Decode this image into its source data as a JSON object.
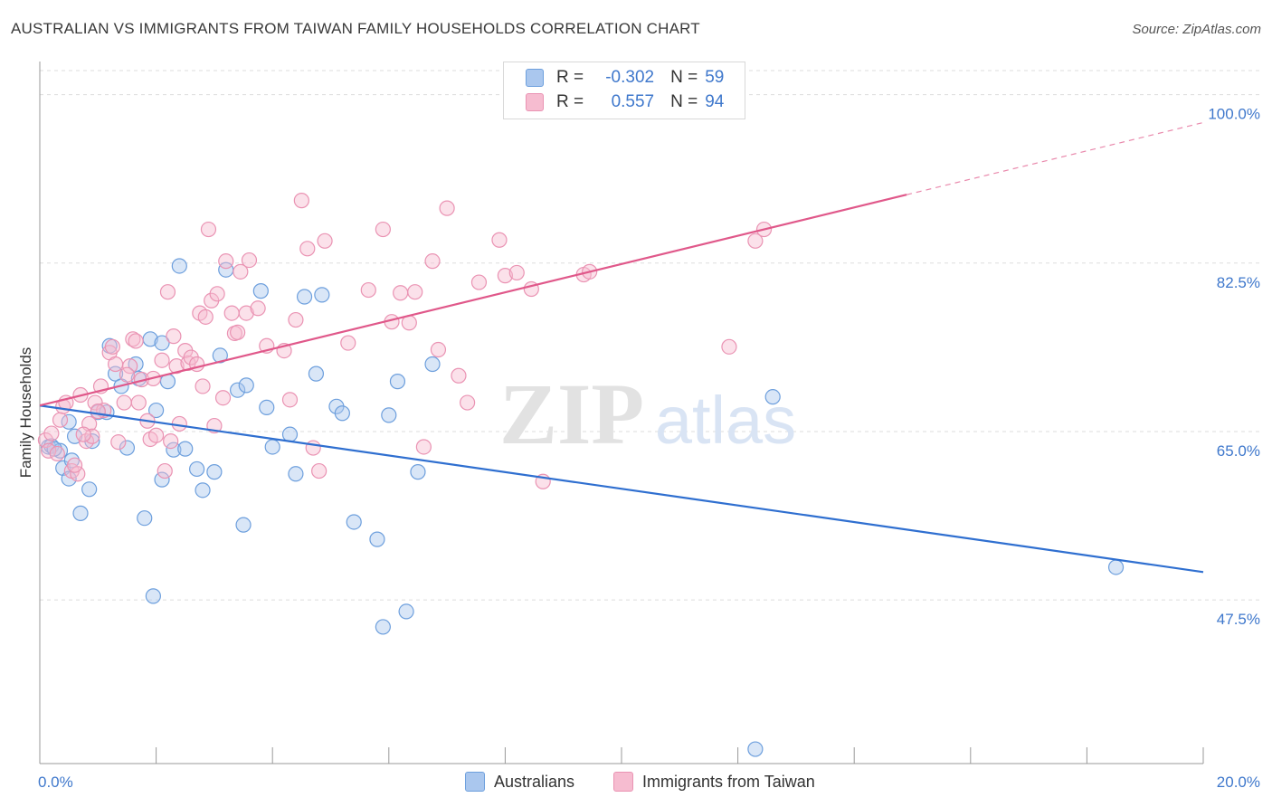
{
  "header": {
    "title": "AUSTRALIAN VS IMMIGRANTS FROM TAIWAN FAMILY HOUSEHOLDS CORRELATION CHART",
    "source": "Source: ZipAtlas.com"
  },
  "watermark": {
    "zip": "ZIP",
    "atlas": "atlas"
  },
  "legend": {
    "rows": [
      {
        "r_label": "R =",
        "r_value": "-0.302",
        "n_label": "N =",
        "n_value": "59"
      },
      {
        "r_label": "R =",
        "r_value": "0.557",
        "n_label": "N =",
        "n_value": "94"
      }
    ]
  },
  "bottom_legend": {
    "series1": "Australians",
    "series2": "Immigrants from Taiwan"
  },
  "colors": {
    "blue_fill": "#aac7ee",
    "blue_stroke": "#6d9fdd",
    "blue_line": "#2f6fd0",
    "pink_fill": "#f6bcd0",
    "pink_stroke": "#ea93b3",
    "pink_line": "#e0588a",
    "tick_label": "#3f78cc",
    "grid": "#dddddd"
  },
  "chart_data": {
    "type": "scatter",
    "title": "AUSTRALIAN VS IMMIGRANTS FROM TAIWAN FAMILY HOUSEHOLDS CORRELATION CHART",
    "xlabel": "",
    "ylabel": "Family Households",
    "xlim": [
      0,
      20
    ],
    "ylim": [
      30.5,
      102.5
    ],
    "x_tick_labels": [
      {
        "value": 0,
        "label": "0.0%"
      },
      {
        "value": 20,
        "label": "20.0%"
      }
    ],
    "y_ticks": [
      {
        "value": 100.0,
        "label": "100.0%"
      },
      {
        "value": 82.5,
        "label": "82.5%"
      },
      {
        "value": 65.0,
        "label": "65.0%"
      },
      {
        "value": 47.5,
        "label": "47.5%"
      }
    ],
    "series": [
      {
        "name": "Australians",
        "R": -0.302,
        "N": 59,
        "trend": {
          "x0": 0,
          "y0": 67.7,
          "x1": 20,
          "y1": 50.4
        },
        "points": [
          [
            0.15,
            63.4
          ],
          [
            0.2,
            63.5
          ],
          [
            0.35,
            63.0
          ],
          [
            0.4,
            61.2
          ],
          [
            0.5,
            60.1
          ],
          [
            0.55,
            62.0
          ],
          [
            0.5,
            66.0
          ],
          [
            0.6,
            64.5
          ],
          [
            0.7,
            56.5
          ],
          [
            0.85,
            59.0
          ],
          [
            0.9,
            64.0
          ],
          [
            1.0,
            67.0
          ],
          [
            1.2,
            73.9
          ],
          [
            1.3,
            71.0
          ],
          [
            1.4,
            69.7
          ],
          [
            1.5,
            63.3
          ],
          [
            1.65,
            72.0
          ],
          [
            1.8,
            56.0
          ],
          [
            1.9,
            74.6
          ],
          [
            2.0,
            67.2
          ],
          [
            2.1,
            60.0
          ],
          [
            2.2,
            70.2
          ],
          [
            2.3,
            63.1
          ],
          [
            2.4,
            82.2
          ],
          [
            2.5,
            63.2
          ],
          [
            2.7,
            61.1
          ],
          [
            2.8,
            58.9
          ],
          [
            3.0,
            60.8
          ],
          [
            3.1,
            72.9
          ],
          [
            3.2,
            81.8
          ],
          [
            3.4,
            69.3
          ],
          [
            3.5,
            55.3
          ],
          [
            3.55,
            69.8
          ],
          [
            3.8,
            79.6
          ],
          [
            3.9,
            67.5
          ],
          [
            4.0,
            63.4
          ],
          [
            4.3,
            64.7
          ],
          [
            4.4,
            60.6
          ],
          [
            4.55,
            79.0
          ],
          [
            4.75,
            71.0
          ],
          [
            4.85,
            79.2
          ],
          [
            5.1,
            67.6
          ],
          [
            5.2,
            66.9
          ],
          [
            5.4,
            55.6
          ],
          [
            5.8,
            53.8
          ],
          [
            5.9,
            44.7
          ],
          [
            6.0,
            66.7
          ],
          [
            6.15,
            70.2
          ],
          [
            6.3,
            46.3
          ],
          [
            6.5,
            60.8
          ],
          [
            6.75,
            72.0
          ],
          [
            1.95,
            47.9
          ],
          [
            12.3,
            32.0
          ],
          [
            12.6,
            68.6
          ],
          [
            18.5,
            50.9
          ],
          [
            1.7,
            70.5
          ],
          [
            2.1,
            74.2
          ],
          [
            1.15,
            67.0
          ],
          [
            0.25,
            63.2
          ]
        ]
      },
      {
        "name": "Immigrants from Taiwan",
        "R": 0.557,
        "N": 94,
        "trend": {
          "x0": 0,
          "y0": 67.7,
          "x1": 14.9,
          "y1": 89.6,
          "x_dashed_end": 20,
          "y_dashed_end": 97.1
        },
        "points": [
          [
            0.1,
            64.1
          ],
          [
            0.15,
            63.0
          ],
          [
            0.2,
            64.8
          ],
          [
            0.3,
            62.7
          ],
          [
            0.4,
            67.6
          ],
          [
            0.45,
            68.0
          ],
          [
            0.55,
            60.9
          ],
          [
            0.65,
            60.6
          ],
          [
            0.7,
            68.8
          ],
          [
            0.8,
            64.0
          ],
          [
            0.85,
            65.8
          ],
          [
            0.9,
            64.5
          ],
          [
            0.95,
            68.0
          ],
          [
            1.05,
            69.7
          ],
          [
            1.1,
            67.2
          ],
          [
            1.2,
            73.2
          ],
          [
            1.25,
            73.8
          ],
          [
            1.3,
            72.0
          ],
          [
            1.35,
            63.9
          ],
          [
            1.45,
            68.0
          ],
          [
            1.55,
            71.8
          ],
          [
            1.6,
            74.6
          ],
          [
            1.65,
            74.4
          ],
          [
            1.7,
            68.0
          ],
          [
            1.75,
            70.4
          ],
          [
            1.85,
            66.1
          ],
          [
            1.9,
            64.2
          ],
          [
            1.95,
            70.5
          ],
          [
            2.0,
            64.6
          ],
          [
            2.1,
            72.4
          ],
          [
            2.15,
            60.9
          ],
          [
            2.2,
            79.5
          ],
          [
            2.3,
            74.9
          ],
          [
            2.35,
            71.8
          ],
          [
            2.4,
            65.8
          ],
          [
            2.5,
            73.4
          ],
          [
            2.55,
            72.1
          ],
          [
            2.6,
            72.7
          ],
          [
            2.7,
            72.0
          ],
          [
            2.75,
            77.3
          ],
          [
            2.8,
            69.7
          ],
          [
            2.85,
            76.9
          ],
          [
            2.9,
            86.0
          ],
          [
            2.95,
            78.6
          ],
          [
            3.0,
            65.6
          ],
          [
            3.05,
            79.3
          ],
          [
            3.15,
            68.5
          ],
          [
            3.2,
            82.7
          ],
          [
            3.3,
            77.3
          ],
          [
            3.35,
            75.2
          ],
          [
            3.4,
            75.3
          ],
          [
            3.45,
            81.6
          ],
          [
            3.55,
            77.3
          ],
          [
            3.6,
            82.8
          ],
          [
            3.75,
            77.8
          ],
          [
            3.9,
            73.9
          ],
          [
            4.2,
            73.4
          ],
          [
            4.3,
            68.3
          ],
          [
            4.4,
            76.6
          ],
          [
            4.5,
            89.0
          ],
          [
            4.6,
            84.0
          ],
          [
            4.7,
            63.3
          ],
          [
            4.8,
            60.9
          ],
          [
            4.9,
            84.8
          ],
          [
            5.3,
            74.2
          ],
          [
            5.65,
            79.7
          ],
          [
            5.9,
            86.0
          ],
          [
            6.05,
            76.4
          ],
          [
            6.2,
            79.4
          ],
          [
            6.35,
            76.3
          ],
          [
            6.45,
            79.5
          ],
          [
            6.6,
            63.4
          ],
          [
            6.75,
            82.7
          ],
          [
            6.85,
            73.5
          ],
          [
            7.0,
            88.2
          ],
          [
            7.2,
            70.8
          ],
          [
            7.35,
            68.0
          ],
          [
            7.55,
            80.5
          ],
          [
            7.9,
            84.9
          ],
          [
            8.0,
            81.2
          ],
          [
            8.2,
            81.5
          ],
          [
            8.45,
            79.8
          ],
          [
            8.65,
            59.8
          ],
          [
            9.35,
            81.3
          ],
          [
            9.45,
            81.6
          ],
          [
            11.85,
            73.8
          ],
          [
            12.3,
            84.8
          ],
          [
            12.45,
            86.0
          ],
          [
            0.6,
            61.5
          ],
          [
            0.75,
            64.7
          ],
          [
            1.0,
            67.1
          ],
          [
            1.5,
            70.9
          ],
          [
            2.25,
            64.0
          ],
          [
            0.35,
            66.2
          ]
        ]
      }
    ]
  }
}
